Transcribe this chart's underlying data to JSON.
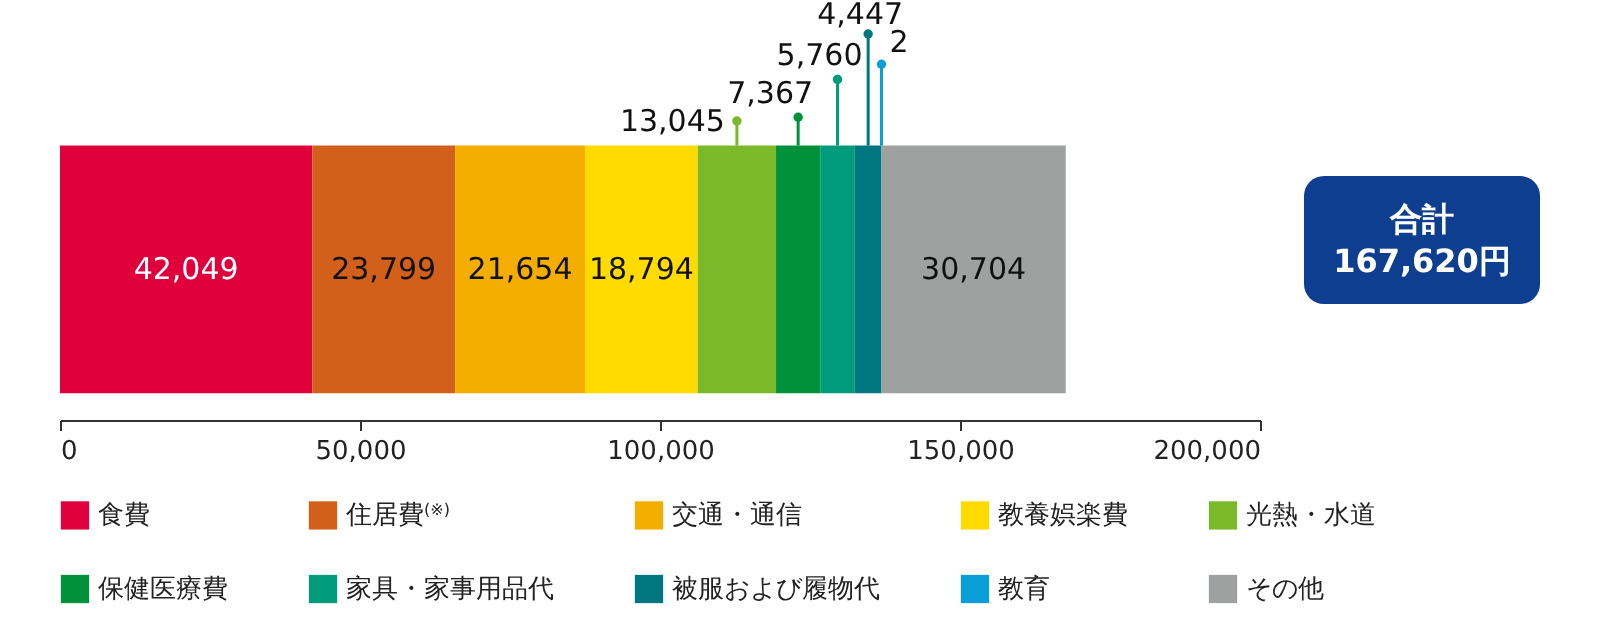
{
  "chart_data": {
    "type": "bar",
    "orientation": "horizontal",
    "stacked": true,
    "categories": [
      null
    ],
    "series": [
      {
        "name": "食費",
        "color": "#e0003c",
        "values": [
          42049
        ]
      },
      {
        "name": "住居費$^{(※)}$",
        "color": "#d2601a",
        "values": [
          23799
        ]
      },
      {
        "name": "交通・通信",
        "color": "#f4ae00",
        "values": [
          21654
        ]
      },
      {
        "name": "教養娯楽費",
        "color": "#ffdb00",
        "values": [
          18794
        ]
      },
      {
        "name": "光熱・水道",
        "color": "#7ab929",
        "values": [
          13045
        ]
      },
      {
        "name": "保健医療費",
        "color": "#00913a",
        "values": [
          7367
        ]
      },
      {
        "name": "家具・家事用品代",
        "color": "#009b7d",
        "values": [
          5760
        ]
      },
      {
        "name": "被服および履物代",
        "color": "#007680",
        "values": [
          4447
        ]
      },
      {
        "name": "教育",
        "color": "#0a9ed6",
        "values": [
          2
        ]
      },
      {
        "name": "その他",
        "color": "#9fa0a0",
        "values": [
          30704
        ]
      }
    ],
    "xlim": [
      0,
      200000
    ],
    "xticks": [
      0,
      {
        "value": 50000,
        "label": "50,000"
      },
      {
        "value": 100000,
        "label": "100,000"
      },
      {
        "value": 150000,
        "label": "150,000"
      },
      {
        "value": 200000,
        "label": "200,000"
      }
    ],
    "value_labels": [
      "42,049",
      "23,799",
      "21,654",
      "18,794",
      "13,045",
      "7,367",
      "5,760",
      "4,447",
      "2",
      "30,704"
    ],
    "legend": "bottom",
    "annotations": [
      "合計\n167,620円"
    ]
  }
}
